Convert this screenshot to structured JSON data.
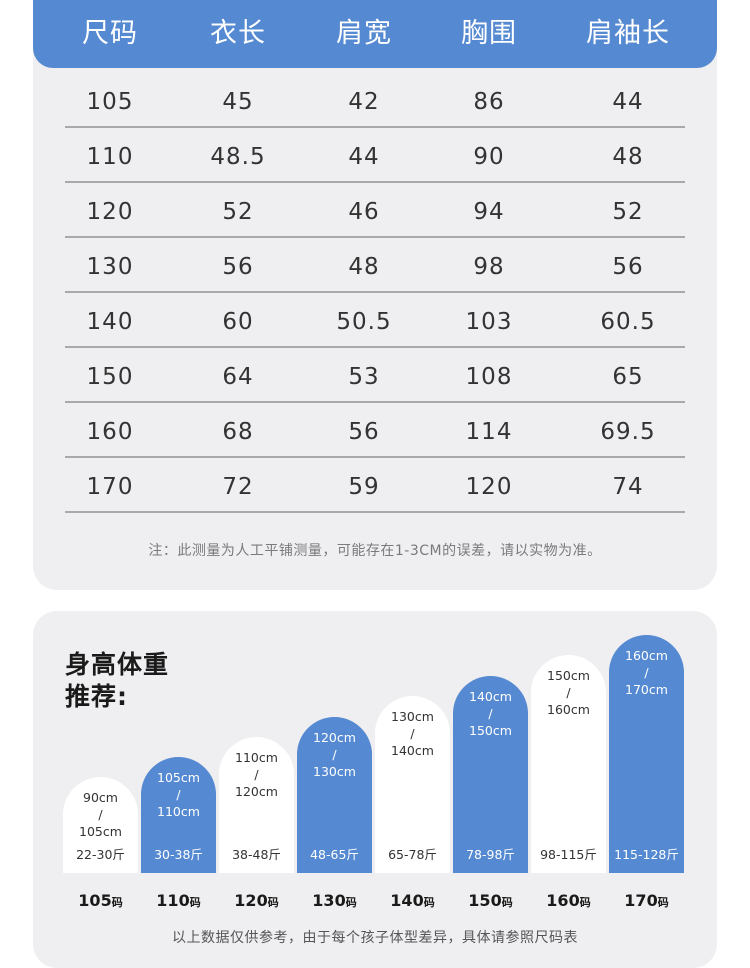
{
  "size_table": {
    "headers": [
      "尺码",
      "衣长",
      "肩宽",
      "胸围",
      "肩袖长"
    ],
    "rows": [
      [
        "105",
        "45",
        "42",
        "86",
        "44"
      ],
      [
        "110",
        "48.5",
        "44",
        "90",
        "48"
      ],
      [
        "120",
        "52",
        "46",
        "94",
        "52"
      ],
      [
        "130",
        "56",
        "48",
        "98",
        "56"
      ],
      [
        "140",
        "60",
        "50.5",
        "103",
        "60.5"
      ],
      [
        "150",
        "64",
        "53",
        "108",
        "65"
      ],
      [
        "160",
        "68",
        "56",
        "114",
        "69.5"
      ],
      [
        "170",
        "72",
        "59",
        "120",
        "74"
      ]
    ],
    "note": "注：此测量为人工平铺测量，可能存在1-3CM的误差，请以实物为准。"
  },
  "recommend": {
    "title_line1": "身高体重",
    "title_line2": "推荐:",
    "bars": [
      {
        "height_from": "90cm",
        "slash": "/",
        "height_to": "105cm",
        "weight": "22-30斤",
        "size": "105",
        "unit": "码",
        "style": "white"
      },
      {
        "height_from": "105cm",
        "slash": "/",
        "height_to": "110cm",
        "weight": "30-38斤",
        "size": "110",
        "unit": "码",
        "style": "blue"
      },
      {
        "height_from": "110cm",
        "slash": "/",
        "height_to": "120cm",
        "weight": "38-48斤",
        "size": "120",
        "unit": "码",
        "style": "white"
      },
      {
        "height_from": "120cm",
        "slash": "/",
        "height_to": "130cm",
        "weight": "48-65斤",
        "size": "130",
        "unit": "码",
        "style": "blue"
      },
      {
        "height_from": "130cm",
        "slash": "/",
        "height_to": "140cm",
        "weight": "65-78斤",
        "size": "140",
        "unit": "码",
        "style": "white"
      },
      {
        "height_from": "140cm",
        "slash": "/",
        "height_to": "150cm",
        "weight": "78-98斤",
        "size": "150",
        "unit": "码",
        "style": "blue"
      },
      {
        "height_from": "150cm",
        "slash": "/",
        "height_to": "160cm",
        "weight": "98-115斤",
        "size": "160",
        "unit": "码",
        "style": "white"
      },
      {
        "height_from": "160cm",
        "slash": "/",
        "height_to": "170cm",
        "weight": "115-128斤",
        "size": "170",
        "unit": "码",
        "style": "blue"
      }
    ],
    "footnote": "以上数据仅供参考，由于每个孩子体型差异，具体请参照尺码表",
    "colors": {
      "blue": "#5589d1",
      "white": "#ffffff",
      "card": "#efeff1"
    }
  }
}
